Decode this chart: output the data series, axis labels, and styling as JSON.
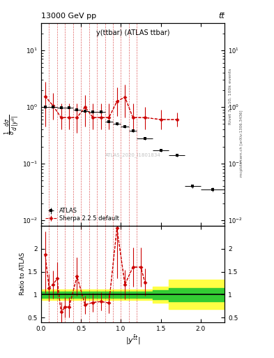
{
  "title_main": "y(ttbar) (ATLAS ttbar)",
  "header_left": "13000 GeV pp",
  "header_right": "tt̅",
  "watermark": "ATLAS_2020_I1801834",
  "right_label": "Rivet 3.1.10, 100k events",
  "right_label2": "mcplots.cern.ch [arXiv:1306.3436]",
  "ylabel_main": "1/σ dσ/d|y^{ttbar}|",
  "ylabel_ratio": "Ratio to ATLAS",
  "xlabel": "|y^{tbar t}|",
  "atlas_x": [
    0.05,
    0.15,
    0.25,
    0.35,
    0.45,
    0.55,
    0.65,
    0.75,
    0.85,
    0.95,
    1.05,
    1.15,
    1.3,
    1.5,
    1.7,
    1.9,
    2.15
  ],
  "atlas_y": [
    1.0,
    1.0,
    0.97,
    0.97,
    0.9,
    0.85,
    0.82,
    0.82,
    0.55,
    0.5,
    0.45,
    0.38,
    0.28,
    0.17,
    0.14,
    0.04,
    0.035
  ],
  "atlas_xerr": [
    0.05,
    0.05,
    0.05,
    0.05,
    0.05,
    0.05,
    0.05,
    0.05,
    0.05,
    0.05,
    0.05,
    0.05,
    0.1,
    0.1,
    0.1,
    0.1,
    0.15
  ],
  "atlas_yerr": [
    0.03,
    0.03,
    0.03,
    0.03,
    0.03,
    0.03,
    0.03,
    0.03,
    0.02,
    0.02,
    0.02,
    0.02,
    0.015,
    0.01,
    0.008,
    0.003,
    0.003
  ],
  "sherpa_x": [
    0.05,
    0.15,
    0.25,
    0.35,
    0.45,
    0.55,
    0.65,
    0.75,
    0.85,
    0.95,
    1.05,
    1.15,
    1.3,
    1.5,
    1.7
  ],
  "sherpa_y": [
    1.55,
    1.05,
    0.65,
    0.65,
    0.65,
    1.0,
    0.65,
    0.65,
    0.65,
    1.25,
    1.5,
    0.65,
    0.65,
    0.6,
    0.6
  ],
  "sherpa_yerr_lo": [
    1.1,
    0.45,
    0.25,
    0.25,
    0.3,
    0.55,
    0.25,
    0.25,
    0.25,
    0.55,
    0.85,
    0.25,
    0.25,
    0.2,
    0.15
  ],
  "sherpa_yerr_hi": [
    1.2,
    0.7,
    0.5,
    0.5,
    0.5,
    0.6,
    0.5,
    0.5,
    0.5,
    0.95,
    1.0,
    0.5,
    0.35,
    0.3,
    0.2
  ],
  "ratio_x": [
    0.05,
    0.1,
    0.15,
    0.2,
    0.25,
    0.3,
    0.35,
    0.45,
    0.55,
    0.65,
    0.75,
    0.85,
    0.95,
    1.05,
    1.15,
    1.25,
    1.3
  ],
  "ratio_y": [
    1.88,
    1.15,
    1.22,
    1.35,
    0.62,
    0.73,
    0.73,
    1.4,
    0.78,
    0.83,
    0.85,
    0.82,
    2.45,
    1.22,
    1.6,
    1.6,
    1.27
  ],
  "ratio_yerr_lo": [
    0.85,
    0.3,
    0.3,
    0.35,
    0.22,
    0.22,
    0.22,
    0.42,
    0.2,
    0.2,
    0.2,
    0.22,
    1.1,
    0.32,
    0.42,
    0.42,
    0.3
  ],
  "ratio_yerr_hi": [
    0.5,
    0.3,
    0.3,
    0.35,
    0.22,
    0.22,
    0.22,
    0.42,
    0.2,
    0.2,
    0.2,
    0.22,
    0.5,
    0.32,
    0.42,
    0.42,
    0.3
  ],
  "vlines": [
    0.1,
    0.2,
    0.3,
    0.4,
    0.5,
    0.6,
    0.7,
    0.8,
    0.9,
    1.0,
    1.1,
    1.2
  ],
  "band_x": [
    0.0,
    0.1,
    0.2,
    0.3,
    0.4,
    0.5,
    0.6,
    0.7,
    0.8,
    0.9,
    1.0,
    1.1,
    1.2,
    1.4,
    1.6,
    2.3
  ],
  "band_yellow_lo": [
    0.88,
    0.88,
    0.88,
    0.88,
    0.88,
    0.88,
    0.88,
    0.88,
    0.88,
    0.88,
    0.88,
    0.88,
    0.88,
    0.82,
    0.68,
    0.68
  ],
  "band_yellow_hi": [
    1.12,
    1.12,
    1.12,
    1.12,
    1.12,
    1.12,
    1.12,
    1.12,
    1.12,
    1.12,
    1.12,
    1.12,
    1.12,
    1.18,
    1.32,
    1.32
  ],
  "band_green_lo": [
    0.93,
    0.93,
    0.93,
    0.93,
    0.93,
    0.93,
    0.93,
    0.93,
    0.93,
    0.93,
    0.93,
    0.93,
    0.93,
    0.9,
    0.85,
    0.85
  ],
  "band_green_hi": [
    1.07,
    1.07,
    1.07,
    1.07,
    1.07,
    1.07,
    1.07,
    1.07,
    1.07,
    1.07,
    1.07,
    1.07,
    1.07,
    1.1,
    1.15,
    1.15
  ],
  "xlim": [
    0.0,
    2.3
  ],
  "ylim_main": [
    0.008,
    30
  ],
  "ylim_ratio": [
    0.4,
    2.5
  ],
  "color_atlas": "#000000",
  "color_sherpa": "#cc0000",
  "color_band_green": "#33cc33",
  "color_band_yellow": "#ffff44",
  "color_ref_line": "#000000"
}
